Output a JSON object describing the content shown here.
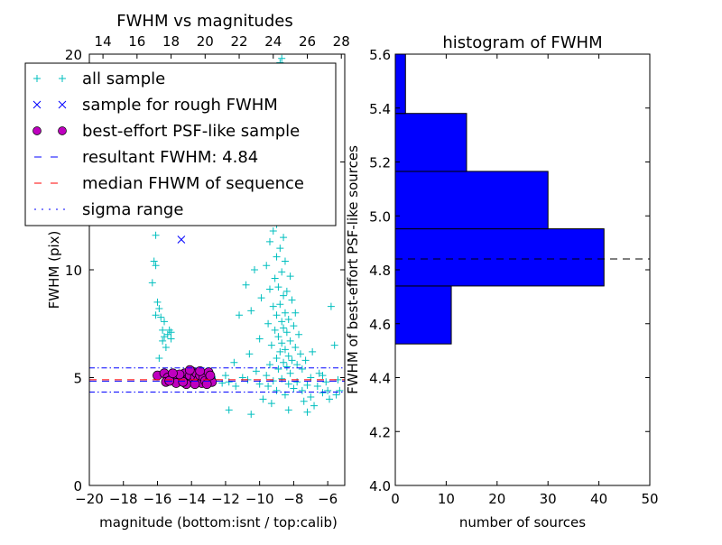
{
  "chart_data": [
    {
      "type": "scatter",
      "title": "FWHM vs magnitudes",
      "xlabel": "magnitude (bottom:isnt / top:calib)",
      "ylabel": "FWHM (pix)",
      "xlim": [
        -20,
        -5
      ],
      "ylim": [
        0,
        20
      ],
      "top_xlim": [
        13.2,
        28.2
      ],
      "xticks": [
        "−20",
        "−18",
        "−16",
        "−14",
        "−12",
        "−10",
        "−8",
        "−6"
      ],
      "xtick_values": [
        -20,
        -18,
        -16,
        -14,
        -12,
        -10,
        -8,
        -6
      ],
      "top_xticks": [
        "14",
        "16",
        "18",
        "20",
        "22",
        "24",
        "26",
        "28"
      ],
      "top_xtick_values": [
        14,
        16,
        18,
        20,
        22,
        24,
        26,
        28
      ],
      "yticks": [
        "0",
        "5",
        "10",
        "15",
        "20"
      ],
      "ytick_values": [
        0,
        5,
        10,
        15,
        20
      ],
      "legend_position": "upper-left",
      "legend": [
        {
          "label": "all sample",
          "marker": "plus",
          "color": "#00bfbf"
        },
        {
          "label": "sample for rough FWHM",
          "marker": "x",
          "color": "#0000ff"
        },
        {
          "label": "best-effort PSF-like sample",
          "marker": "circle",
          "color": "#bf00bf"
        },
        {
          "label": "resultant FWHM: 4.84",
          "marker": "dashed",
          "color": "#0000ff"
        },
        {
          "label": "median FHWM of sequence",
          "marker": "dashed",
          "color": "#ff0000"
        },
        {
          "label": "sigma range",
          "marker": "dashdot",
          "color": "#0000ff"
        }
      ],
      "hlines": {
        "resultant": 4.84,
        "median": 4.9,
        "sigma_low": 4.33,
        "sigma_high": 5.45
      },
      "series": {
        "all_sample": [
          [
            -16.1,
            11.6
          ],
          [
            -16.2,
            10.4
          ],
          [
            -16.1,
            10.2
          ],
          [
            -16.3,
            9.4
          ],
          [
            -16.0,
            8.5
          ],
          [
            -15.9,
            8.2
          ],
          [
            -16.1,
            7.9
          ],
          [
            -15.8,
            7.8
          ],
          [
            -15.6,
            7.6
          ],
          [
            -15.7,
            7.2
          ],
          [
            -15.6,
            6.9
          ],
          [
            -15.4,
            7.0
          ],
          [
            -15.3,
            7.2
          ],
          [
            -15.2,
            6.8
          ],
          [
            -15.5,
            6.4
          ],
          [
            -15.2,
            7.1
          ],
          [
            -15.9,
            5.9
          ],
          [
            -15.7,
            6.7
          ],
          [
            -8.7,
            19.8
          ],
          [
            -8.8,
            19.6
          ],
          [
            -8.5,
            15.2
          ],
          [
            -9.1,
            14.6
          ],
          [
            -9.3,
            13.4
          ],
          [
            -8.9,
            12.9
          ],
          [
            -9.0,
            12.1
          ],
          [
            -9.2,
            11.8
          ],
          [
            -8.6,
            11.5
          ],
          [
            -9.4,
            11.3
          ],
          [
            -8.8,
            11.0
          ],
          [
            -9.0,
            10.6
          ],
          [
            -8.5,
            10.4
          ],
          [
            -9.6,
            10.2
          ],
          [
            -10.3,
            10.0
          ],
          [
            -8.7,
            9.9
          ],
          [
            -9.1,
            9.6
          ],
          [
            -8.2,
            9.7
          ],
          [
            -10.8,
            9.3
          ],
          [
            -9.4,
            9.1
          ],
          [
            -8.9,
            9.2
          ],
          [
            -8.4,
            9.0
          ],
          [
            -8.6,
            8.8
          ],
          [
            -9.9,
            8.7
          ],
          [
            -8.1,
            8.6
          ],
          [
            -8.8,
            8.4
          ],
          [
            -9.2,
            8.3
          ],
          [
            -10.5,
            8.1
          ],
          [
            -8.5,
            8.0
          ],
          [
            -7.9,
            8.0
          ],
          [
            -9.0,
            7.9
          ],
          [
            -8.3,
            7.7
          ],
          [
            -8.7,
            7.6
          ],
          [
            -9.5,
            7.5
          ],
          [
            -11.2,
            7.9
          ],
          [
            -8.0,
            7.4
          ],
          [
            -8.6,
            7.3
          ],
          [
            -9.1,
            7.2
          ],
          [
            -8.4,
            7.1
          ],
          [
            -7.7,
            7.0
          ],
          [
            -8.9,
            6.9
          ],
          [
            -10.0,
            6.8
          ],
          [
            -8.2,
            6.7
          ],
          [
            -8.7,
            6.6
          ],
          [
            -9.3,
            6.5
          ],
          [
            -7.9,
            6.4
          ],
          [
            -8.5,
            6.3
          ],
          [
            -8.8,
            6.2
          ],
          [
            -10.6,
            6.1
          ],
          [
            -7.6,
            6.1
          ],
          [
            -8.3,
            6.0
          ],
          [
            -9.0,
            5.9
          ],
          [
            -8.1,
            5.8
          ],
          [
            -7.3,
            5.8
          ],
          [
            -8.6,
            5.7
          ],
          [
            -9.4,
            5.6
          ],
          [
            -11.5,
            5.7
          ],
          [
            -7.8,
            5.6
          ],
          [
            -8.4,
            5.5
          ],
          [
            -8.9,
            5.4
          ],
          [
            -7.5,
            5.4
          ],
          [
            -10.2,
            5.3
          ],
          [
            -8.2,
            5.2
          ],
          [
            -6.5,
            5.2
          ],
          [
            -12.0,
            5.1
          ],
          [
            -9.6,
            5.1
          ],
          [
            -7.0,
            5.0
          ],
          [
            -11.0,
            5.0
          ],
          [
            -8.7,
            4.95
          ],
          [
            -12.6,
            4.9
          ],
          [
            -10.7,
            4.9
          ],
          [
            -9.2,
            4.85
          ],
          [
            -7.8,
            4.8
          ],
          [
            -6.1,
            4.8
          ],
          [
            -11.8,
            4.8
          ],
          [
            -12.2,
            4.75
          ],
          [
            -10.0,
            4.7
          ],
          [
            -8.3,
            4.7
          ],
          [
            -7.2,
            4.65
          ],
          [
            -5.4,
            4.9
          ],
          [
            -9.5,
            4.6
          ],
          [
            -6.6,
            4.6
          ],
          [
            -11.4,
            4.6
          ],
          [
            -8.0,
            4.5
          ],
          [
            -7.5,
            4.4
          ],
          [
            -9.0,
            4.4
          ],
          [
            -6.3,
            4.3
          ],
          [
            -8.5,
            4.2
          ],
          [
            -7.0,
            4.1
          ],
          [
            -9.8,
            4.0
          ],
          [
            -5.9,
            4.0
          ],
          [
            -7.4,
            3.9
          ],
          [
            -6.8,
            3.7
          ],
          [
            -8.3,
            3.5
          ],
          [
            -7.2,
            3.4
          ],
          [
            -9.3,
            3.8
          ],
          [
            -10.5,
            3.3
          ],
          [
            -11.8,
            3.5
          ],
          [
            -5.6,
            6.5
          ],
          [
            -5.8,
            8.3
          ],
          [
            -6.9,
            6.2
          ],
          [
            -6.3,
            5.1
          ],
          [
            -5.3,
            4.4
          ],
          [
            -6.0,
            4.4
          ],
          [
            -5.5,
            4.2
          ]
        ],
        "rough_sample": [
          [
            -14.6,
            11.4
          ]
        ],
        "psf_like": [
          [
            -16.0,
            5.1
          ],
          [
            -15.6,
            5.2
          ],
          [
            -15.4,
            5.0
          ],
          [
            -15.2,
            4.9
          ],
          [
            -15.5,
            4.8
          ],
          [
            -15.0,
            5.1
          ],
          [
            -14.8,
            4.9
          ],
          [
            -14.6,
            5.0
          ],
          [
            -14.9,
            4.75
          ],
          [
            -15.3,
            4.85
          ],
          [
            -14.4,
            5.2
          ],
          [
            -14.2,
            4.95
          ],
          [
            -14.0,
            5.3
          ],
          [
            -14.1,
            5.1
          ],
          [
            -13.9,
            4.8
          ],
          [
            -13.8,
            5.0
          ],
          [
            -14.3,
            4.7
          ],
          [
            -13.7,
            5.2
          ],
          [
            -13.6,
            4.9
          ],
          [
            -13.5,
            5.1
          ],
          [
            -13.4,
            4.75
          ],
          [
            -13.3,
            5.0
          ],
          [
            -13.2,
            4.85
          ],
          [
            -13.0,
            5.25
          ],
          [
            -12.9,
            4.95
          ],
          [
            -12.8,
            4.8
          ],
          [
            -12.9,
            5.1
          ],
          [
            -13.1,
            4.7
          ],
          [
            -14.5,
            4.8
          ],
          [
            -14.7,
            5.15
          ],
          [
            -13.8,
            4.7
          ],
          [
            -14.1,
            5.35
          ],
          [
            -13.5,
            5.3
          ],
          [
            -15.1,
            5.2
          ]
        ]
      }
    },
    {
      "type": "bar",
      "orientation": "horizontal",
      "title": "histogram of FWHM",
      "xlabel": "number of sources",
      "ylabel": "FWHM of best-effort PSF-like sources",
      "xlim": [
        0,
        50
      ],
      "ylim": [
        4.0,
        5.6
      ],
      "xticks": [
        "0",
        "10",
        "20",
        "30",
        "40",
        "50"
      ],
      "xtick_values": [
        0,
        10,
        20,
        30,
        40,
        50
      ],
      "yticks": [
        "4.0",
        "4.2",
        "4.4",
        "4.6",
        "4.8",
        "5.0",
        "5.2",
        "5.4",
        "5.6"
      ],
      "ytick_values": [
        4.0,
        4.2,
        4.4,
        4.6,
        4.8,
        5.0,
        5.2,
        5.4,
        5.6
      ],
      "bins": [
        [
          4.525,
          4.74
        ],
        [
          4.74,
          4.952
        ],
        [
          4.952,
          5.165
        ],
        [
          5.165,
          5.38
        ],
        [
          5.38,
          5.6
        ]
      ],
      "values": [
        11,
        41,
        30,
        14,
        2
      ],
      "bar_color": "#0000ff",
      "hline": 4.84
    }
  ]
}
